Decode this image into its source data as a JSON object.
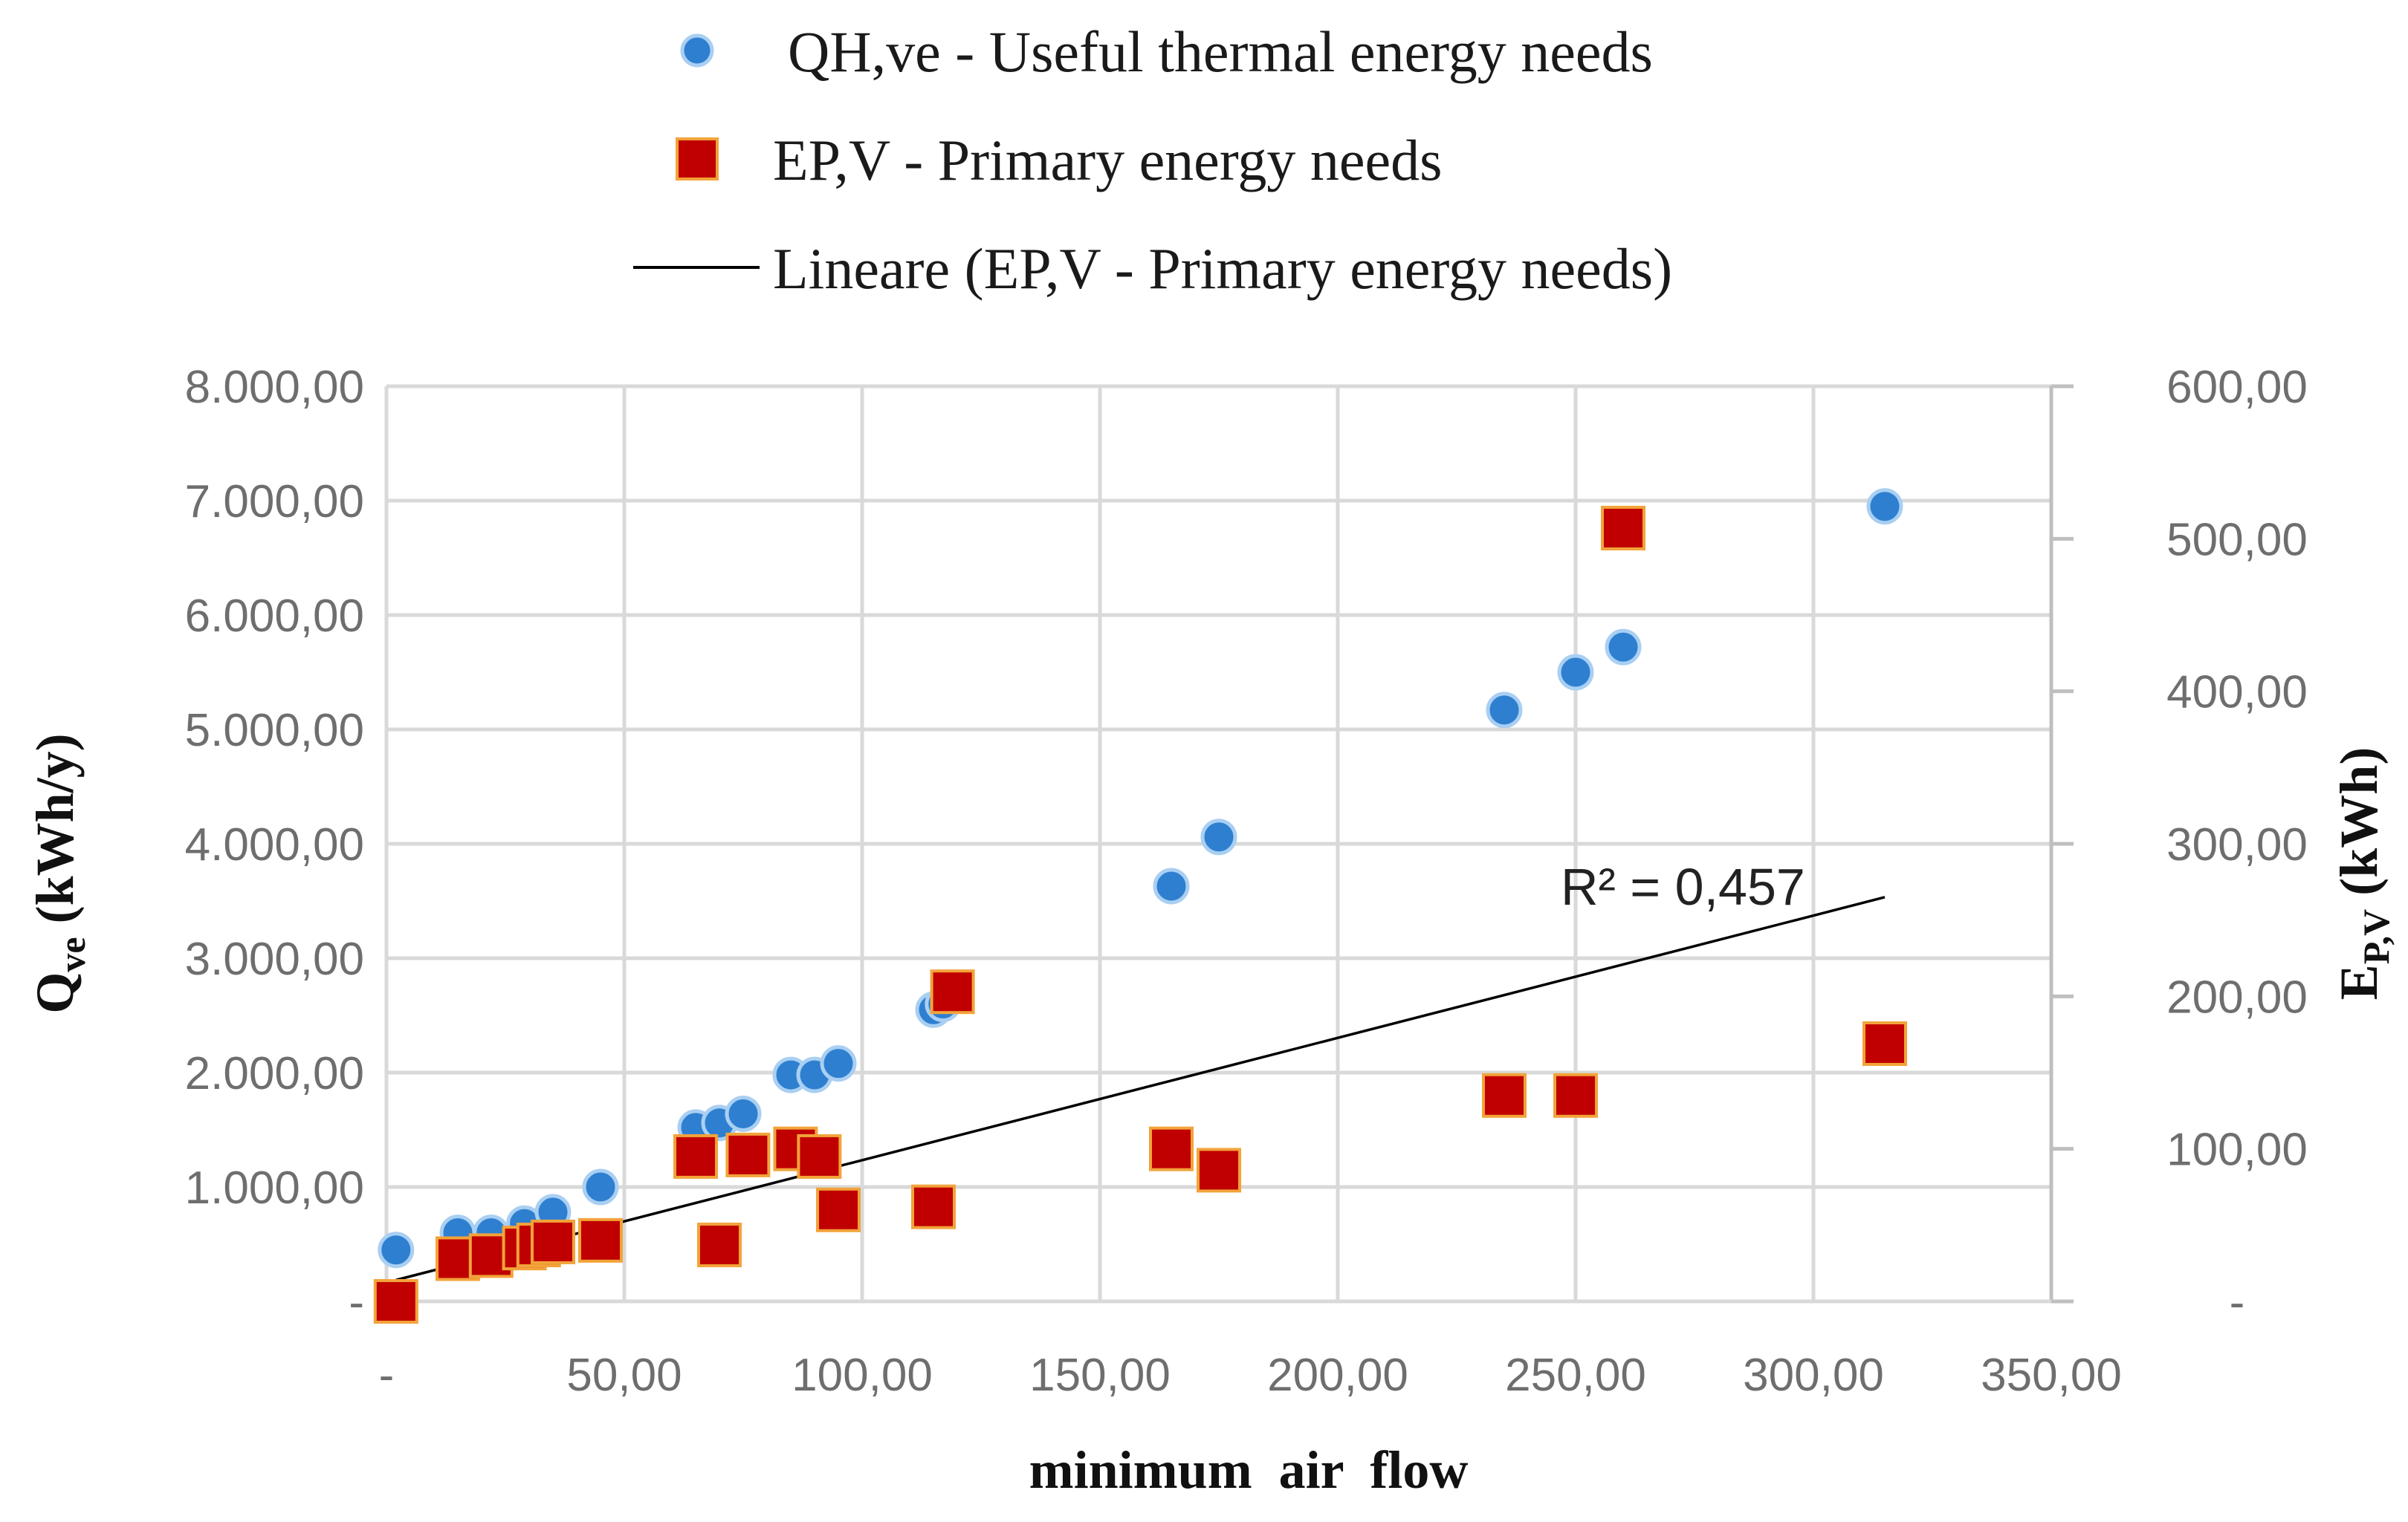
{
  "chart_data": {
    "type": "scatter",
    "legend": {
      "placement": "top",
      "entries": [
        {
          "key": "qh",
          "label": "QH,ve - Useful thermal energy needs",
          "marker": "circle",
          "color": "#2e7fd0"
        },
        {
          "key": "ep",
          "label": "EP,V - Primary energy needs",
          "marker": "square",
          "color": "#c00000"
        },
        {
          "key": "fit",
          "label": "Lineare (EP,V - Primary energy needs)",
          "marker": "line",
          "color": "#000000"
        }
      ]
    },
    "x_axis": {
      "label": "minimum  air  flow",
      "range": [
        0,
        350
      ],
      "ticks": [
        0,
        50,
        100,
        150,
        200,
        250,
        300,
        350
      ],
      "tick_labels": [
        "-",
        "50,00",
        "100,00",
        "150,00",
        "200,00",
        "250,00",
        "300,00",
        "350,00"
      ]
    },
    "y_left": {
      "label_main": "Q",
      "label_sub": "ve",
      "label_unit": " (kWh/y)",
      "range": [
        0,
        8000
      ],
      "ticks": [
        0,
        1000,
        2000,
        3000,
        4000,
        5000,
        6000,
        7000,
        8000
      ],
      "tick_labels": [
        "-",
        "1.000,00",
        "2.000,00",
        "3.000,00",
        "4.000,00",
        "5.000,00",
        "6.000,00",
        "7.000,00",
        "8.000,00"
      ]
    },
    "y_right": {
      "label_main": "E",
      "label_sub": "P,V",
      "label_unit": " (kWh)",
      "range": [
        0,
        600
      ],
      "ticks": [
        0,
        100,
        200,
        300,
        400,
        500,
        600
      ],
      "tick_labels": [
        "-",
        "100,00",
        "200,00",
        "300,00",
        "400,00",
        "500,00",
        "600,00"
      ]
    },
    "grid": true,
    "series": [
      {
        "name": "QH,ve - Useful thermal energy needs",
        "axis": "left",
        "marker": "circle",
        "color": "#2e7fd0",
        "points": [
          [
            2,
            450
          ],
          [
            15,
            600
          ],
          [
            22,
            600
          ],
          [
            29,
            680
          ],
          [
            35,
            780
          ],
          [
            45,
            1000
          ],
          [
            65,
            1520
          ],
          [
            70,
            1560
          ],
          [
            75,
            1640
          ],
          [
            85,
            1980
          ],
          [
            90,
            1980
          ],
          [
            95,
            2080
          ],
          [
            115,
            2550
          ],
          [
            117,
            2600
          ],
          [
            165,
            3630
          ],
          [
            175,
            4060
          ],
          [
            235,
            5170
          ],
          [
            250,
            5500
          ],
          [
            260,
            5720
          ],
          [
            315,
            6950
          ]
        ]
      },
      {
        "name": "EP,V - Primary energy needs",
        "axis": "right",
        "marker": "square",
        "color": "#c00000",
        "points": [
          [
            2,
            0
          ],
          [
            15,
            28
          ],
          [
            22,
            30
          ],
          [
            29,
            35
          ],
          [
            32,
            37
          ],
          [
            35,
            39
          ],
          [
            45,
            40
          ],
          [
            65,
            95
          ],
          [
            70,
            37
          ],
          [
            76,
            96
          ],
          [
            86,
            100
          ],
          [
            91,
            95
          ],
          [
            95,
            60
          ],
          [
            115,
            62
          ],
          [
            119,
            203
          ],
          [
            165,
            100
          ],
          [
            175,
            86
          ],
          [
            235,
            135
          ],
          [
            250,
            135
          ],
          [
            260,
            507
          ],
          [
            315,
            169
          ]
        ]
      }
    ],
    "trendline": {
      "name": "Lineare (EP,V - Primary energy needs)",
      "axis": "right",
      "x_range": [
        2,
        315
      ],
      "y_start": 14,
      "y_end": 265,
      "r_squared_label": "R² = 0,457"
    }
  }
}
